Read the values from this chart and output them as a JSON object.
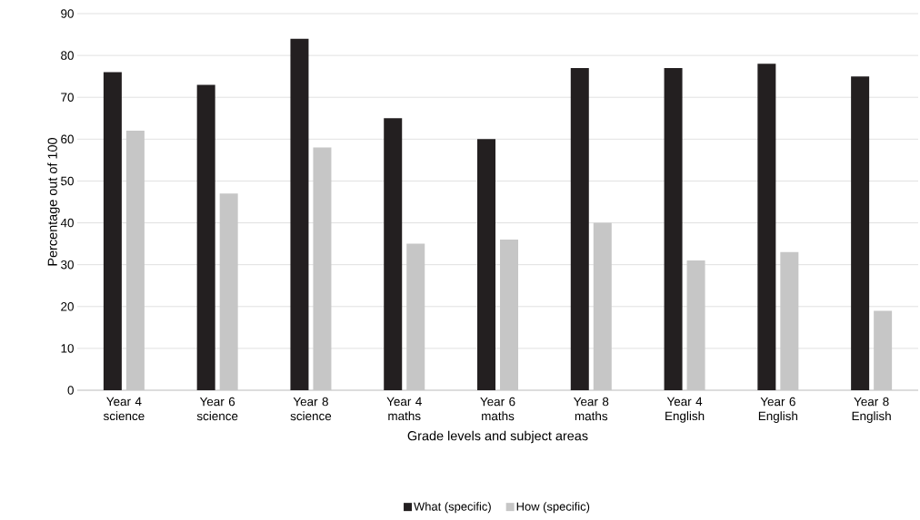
{
  "chart_data": {
    "type": "bar",
    "categories": [
      "Year 4 science",
      "Year 6 science",
      "Year 8 science",
      "Year 4 maths",
      "Year 6 maths",
      "Year 8 maths",
      "Year 4 English",
      "Year 6 English",
      "Year 8 English"
    ],
    "series": [
      {
        "name": "What (specific)",
        "color": "#231f20",
        "values": [
          76,
          73,
          84,
          65,
          60,
          77,
          77,
          78,
          75
        ]
      },
      {
        "name": "How (specific)",
        "color": "#c6c6c6",
        "values": [
          62,
          47,
          58,
          35,
          36,
          40,
          31,
          33,
          19
        ]
      }
    ],
    "xlabel": "Grade levels and subject areas",
    "ylabel": "Percentage out of 100",
    "ylim": [
      0,
      90
    ],
    "yticks": [
      0,
      10,
      20,
      30,
      40,
      50,
      60,
      70,
      80,
      90
    ],
    "grid": "y",
    "legend": "bottom"
  }
}
